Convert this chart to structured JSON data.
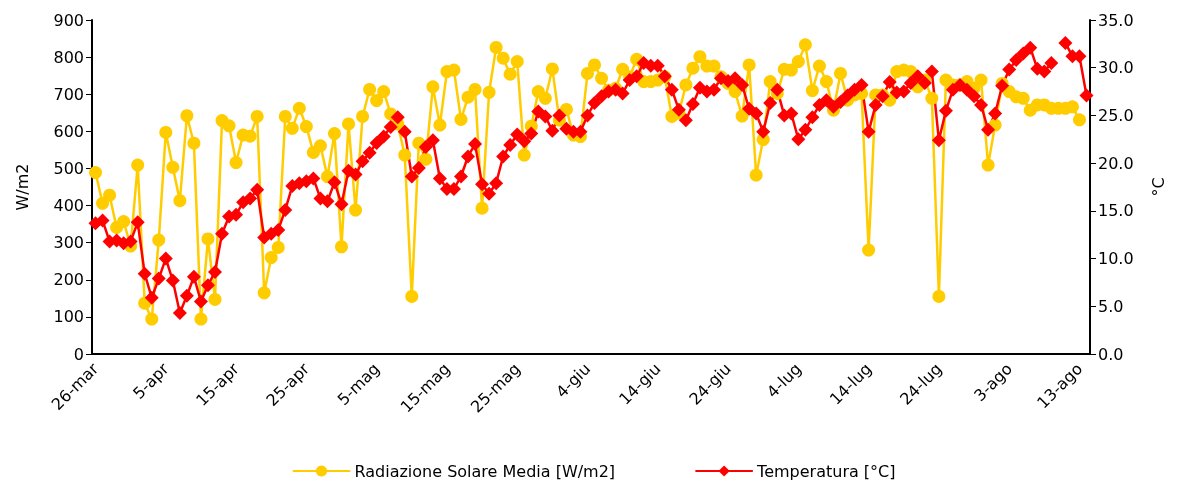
{
  "chart_data": {
    "type": "line",
    "ylabel": "W/m2",
    "y2label": "°C",
    "categories": [
      "26-mar",
      null,
      null,
      null,
      null,
      null,
      null,
      null,
      null,
      null,
      "5-apr",
      null,
      null,
      null,
      null,
      null,
      null,
      null,
      null,
      null,
      "15-apr",
      null,
      null,
      null,
      null,
      null,
      null,
      null,
      null,
      null,
      "25-apr",
      null,
      null,
      null,
      null,
      null,
      null,
      null,
      null,
      null,
      "5-mag",
      null,
      null,
      null,
      null,
      null,
      null,
      null,
      null,
      null,
      "15-mag",
      null,
      null,
      null,
      null,
      null,
      null,
      null,
      null,
      null,
      "25-mag",
      null,
      null,
      null,
      null,
      null,
      null,
      null,
      null,
      null,
      "4-giu",
      null,
      null,
      null,
      null,
      null,
      null,
      null,
      null,
      null,
      "14-giu",
      null,
      null,
      null,
      null,
      null,
      null,
      null,
      null,
      null,
      "24-giu",
      null,
      null,
      null,
      null,
      null,
      null,
      null,
      null,
      null,
      "4-lug",
      null,
      null,
      null,
      null,
      null,
      null,
      null,
      null,
      null,
      "14-lug",
      null,
      null,
      null,
      null,
      null,
      null,
      null,
      null,
      null,
      "24-lug",
      null,
      null,
      null,
      null,
      null,
      null,
      null,
      null,
      null,
      "3-ago",
      null,
      null,
      null,
      null,
      null,
      null,
      null,
      null,
      null,
      "13-ago",
      null
    ],
    "series": [
      {
        "name": "Radiazione Solare Media [W/m2]",
        "color": "#ffcc00",
        "marker": "circle",
        "values": [
          489,
          406,
          428,
          341,
          357,
          291,
          509,
          137,
          94,
          307,
          597,
          503,
          413,
          642,
          568,
          94,
          310,
          147,
          629,
          615,
          516,
          590,
          587,
          640,
          165,
          260,
          287,
          640,
          608,
          662,
          613,
          543,
          561,
          478,
          594,
          289,
          620,
          388,
          640,
          713,
          683,
          707,
          647,
          620,
          536,
          155,
          568,
          525,
          720,
          617,
          761,
          765,
          632,
          692,
          713,
          393,
          705,
          826,
          797,
          754,
          788,
          536,
          614,
          707,
          689,
          768,
          630,
          659,
          590,
          586,
          756,
          779,
          743,
          711,
          716,
          767,
          747,
          794,
          734,
          734,
          738,
          747,
          640,
          649,
          725,
          770,
          801,
          776,
          776,
          747,
          729,
          707,
          641,
          779,
          482,
          578,
          734,
          702,
          767,
          765,
          788,
          833,
          710,
          776,
          734,
          657,
          756,
          684,
          698,
          702,
          280,
          698,
          698,
          684,
          761,
          765,
          761,
          720,
          738,
          689,
          155,
          738,
          725,
          725,
          734,
          716,
          738,
          509,
          617,
          729,
          707,
          693,
          689,
          657,
          671,
          671,
          662,
          662,
          662,
          666,
          631,
          null
        ]
      },
      {
        "name": "Temperatura [°C]",
        "color": "#ff0000",
        "marker": "diamond",
        "axis": "y2",
        "values": [
          13.7,
          14.0,
          11.8,
          11.9,
          11.6,
          11.8,
          13.8,
          8.4,
          5.9,
          7.9,
          10.0,
          7.7,
          4.3,
          6.1,
          8.1,
          5.5,
          7.2,
          8.6,
          12.6,
          14.4,
          14.6,
          15.9,
          16.3,
          17.2,
          12.2,
          12.6,
          13.0,
          15.1,
          17.6,
          17.9,
          18.1,
          18.4,
          16.3,
          16.0,
          18.0,
          15.7,
          19.2,
          18.8,
          20.2,
          21.1,
          22.1,
          22.8,
          23.8,
          24.8,
          23.3,
          18.6,
          19.5,
          21.7,
          22.4,
          18.4,
          17.3,
          17.3,
          18.6,
          20.7,
          22.0,
          17.8,
          16.8,
          17.9,
          20.7,
          21.9,
          23.0,
          22.3,
          23.1,
          25.4,
          24.9,
          23.4,
          25.0,
          23.6,
          23.3,
          23.3,
          25.0,
          26.3,
          27.0,
          27.5,
          27.7,
          27.3,
          28.7,
          29.1,
          30.5,
          30.2,
          30.2,
          29.1,
          27.7,
          25.6,
          24.5,
          26.2,
          27.9,
          27.5,
          27.7,
          28.9,
          28.6,
          28.9,
          28.2,
          25.7,
          25.2,
          23.3,
          26.3,
          27.7,
          25.0,
          25.2,
          22.5,
          23.5,
          24.8,
          26.1,
          26.6,
          25.9,
          26.4,
          27.1,
          27.7,
          28.2,
          23.3,
          26.1,
          27.0,
          28.5,
          27.4,
          27.5,
          28.4,
          29.1,
          28.4,
          29.6,
          22.4,
          25.5,
          27.7,
          28.2,
          27.7,
          27.0,
          26.1,
          23.5,
          25.2,
          28.1,
          29.8,
          30.8,
          31.5,
          32.1,
          29.9,
          29.6,
          30.5,
          null,
          32.6,
          31.2,
          31.2,
          27.1
        ]
      }
    ],
    "ylim": [
      0,
      900
    ],
    "yticks": [
      0,
      100,
      200,
      300,
      400,
      500,
      600,
      700,
      800,
      900
    ],
    "y2lim": [
      0,
      35
    ],
    "y2ticks": [
      {
        "value": 0,
        "label": "0.0"
      },
      {
        "value": 5,
        "label": "5.0"
      },
      {
        "value": 10,
        "label": "10.0"
      },
      {
        "value": 15,
        "label": "15.0"
      },
      {
        "value": 20,
        "label": "20.0"
      },
      {
        "value": 25,
        "label": "25.0"
      },
      {
        "value": 30,
        "label": "30.0"
      },
      {
        "value": 35,
        "label": "35.0"
      }
    ],
    "grid": false,
    "legend": "bottom",
    "line_style": "solid"
  }
}
